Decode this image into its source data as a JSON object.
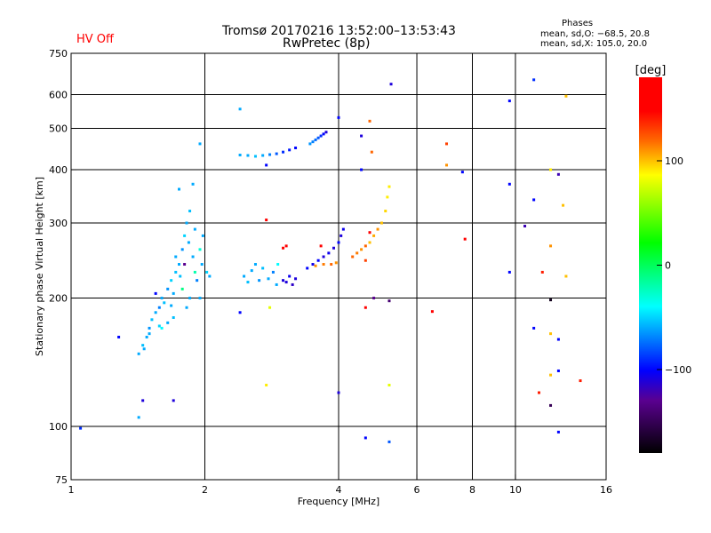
{
  "header": {
    "hv_status": "HV Off",
    "hv_color": "#ff0000",
    "title_line1": "Tromsø 20170216 13:52:00–13:53:43",
    "title_line2": "RwPretec (8p)",
    "phase_title": "Phases",
    "phase_o": "mean, sd,O: −68.5, 20.8",
    "phase_x": "mean, sd,X: 105.0, 20.0"
  },
  "chart_data": {
    "type": "scatter",
    "xlabel": "Frequency [MHz]",
    "ylabel": "Stationary phase Virtual Height [km]",
    "xscale": "log",
    "yscale": "log",
    "xlim": [
      1,
      16
    ],
    "ylim": [
      75,
      750
    ],
    "xticks": [
      1,
      2,
      4,
      6,
      8,
      10,
      16
    ],
    "xtick_labels": [
      "1",
      "2",
      "4",
      "6",
      "8",
      "10",
      "16"
    ],
    "xgrid": [
      2,
      4,
      6,
      8,
      10
    ],
    "yticks": [
      75,
      100,
      200,
      300,
      400,
      500,
      600,
      750
    ],
    "ytick_labels": [
      "75",
      "100",
      "200",
      "300",
      "400",
      "500",
      "600",
      "750"
    ],
    "ygrid": [
      100,
      200,
      300,
      400,
      500,
      600
    ],
    "colorbar": {
      "label": "[deg]",
      "range": [
        -180,
        180
      ],
      "ticks": [
        100,
        0,
        -100
      ],
      "tick_labels": [
        "100",
        "0",
        "−100"
      ]
    },
    "point_fields": [
      "frequency_mhz",
      "height_km",
      "phase_deg"
    ],
    "points": [
      [
        1.42,
        148,
        -60
      ],
      [
        1.45,
        155,
        -55
      ],
      [
        1.48,
        162,
        -60
      ],
      [
        1.5,
        170,
        -65
      ],
      [
        1.52,
        178,
        -55
      ],
      [
        1.55,
        185,
        -60
      ],
      [
        1.58,
        190,
        -70
      ],
      [
        1.6,
        200,
        -60
      ],
      [
        1.62,
        195,
        -55
      ],
      [
        1.65,
        210,
        -65
      ],
      [
        1.68,
        220,
        -50
      ],
      [
        1.7,
        205,
        -60
      ],
      [
        1.72,
        230,
        -55
      ],
      [
        1.75,
        240,
        -60
      ],
      [
        1.78,
        260,
        -65
      ],
      [
        1.8,
        280,
        -50
      ],
      [
        1.82,
        300,
        -60
      ],
      [
        1.85,
        320,
        -55
      ],
      [
        1.88,
        250,
        -60
      ],
      [
        1.9,
        230,
        -20
      ],
      [
        1.92,
        220,
        -70
      ],
      [
        1.95,
        260,
        -30
      ],
      [
        1.98,
        280,
        -60
      ],
      [
        2.02,
        230,
        -50
      ],
      [
        2.05,
        225,
        -60
      ],
      [
        1.75,
        360,
        -60
      ],
      [
        1.88,
        370,
        -60
      ],
      [
        1.6,
        170,
        -40
      ],
      [
        1.55,
        205,
        -100
      ],
      [
        1.5,
        165,
        -60
      ],
      [
        1.7,
        180,
        -55
      ],
      [
        1.65,
        175,
        -60
      ],
      [
        1.78,
        210,
        -10
      ],
      [
        1.85,
        200,
        -60
      ],
      [
        1.82,
        190,
        -60
      ],
      [
        1.95,
        200,
        -60
      ],
      [
        1.72,
        250,
        -60
      ],
      [
        1.46,
        152,
        -60
      ],
      [
        1.58,
        172,
        -50
      ],
      [
        1.68,
        192,
        -60
      ],
      [
        1.76,
        225,
        -55
      ],
      [
        1.84,
        270,
        -60
      ],
      [
        1.9,
        290,
        -60
      ],
      [
        1.8,
        240,
        -130
      ],
      [
        1.97,
        240,
        -60
      ],
      [
        2.45,
        225,
        -60
      ],
      [
        2.5,
        218,
        -55
      ],
      [
        2.55,
        232,
        -60
      ],
      [
        2.6,
        240,
        -60
      ],
      [
        2.65,
        220,
        -65
      ],
      [
        2.7,
        235,
        -55
      ],
      [
        2.78,
        222,
        -60
      ],
      [
        2.85,
        230,
        -70
      ],
      [
        2.92,
        240,
        -40
      ],
      [
        3.0,
        220,
        -110
      ],
      [
        3.05,
        218,
        -110
      ],
      [
        3.1,
        225,
        -105
      ],
      [
        3.15,
        215,
        -115
      ],
      [
        3.2,
        222,
        -110
      ],
      [
        3.0,
        262,
        150
      ],
      [
        3.05,
        265,
        160
      ],
      [
        2.9,
        215,
        -60
      ],
      [
        2.4,
        433,
        -60
      ],
      [
        2.5,
        432,
        -60
      ],
      [
        2.6,
        430,
        -55
      ],
      [
        2.7,
        432,
        -60
      ],
      [
        2.8,
        434,
        -70
      ],
      [
        2.9,
        436,
        -80
      ],
      [
        3.0,
        440,
        -90
      ],
      [
        3.1,
        445,
        -95
      ],
      [
        3.2,
        450,
        -100
      ],
      [
        2.75,
        410,
        -100
      ],
      [
        3.45,
        460,
        -65
      ],
      [
        3.5,
        465,
        -70
      ],
      [
        3.55,
        470,
        -75
      ],
      [
        3.6,
        475,
        -80
      ],
      [
        3.65,
        480,
        -90
      ],
      [
        3.7,
        485,
        -100
      ],
      [
        3.75,
        490,
        -110
      ],
      [
        3.4,
        235,
        -100
      ],
      [
        3.5,
        240,
        -105
      ],
      [
        3.6,
        245,
        -100
      ],
      [
        3.7,
        250,
        -110
      ],
      [
        3.8,
        255,
        -105
      ],
      [
        3.9,
        262,
        -110
      ],
      [
        4.0,
        270,
        -100
      ],
      [
        4.05,
        280,
        -110
      ],
      [
        4.1,
        290,
        -105
      ],
      [
        3.55,
        238,
        110
      ],
      [
        3.7,
        240,
        115
      ],
      [
        3.85,
        240,
        120
      ],
      [
        3.95,
        242,
        110
      ],
      [
        3.65,
        265,
        150
      ],
      [
        4.3,
        250,
        120
      ],
      [
        4.4,
        255,
        115
      ],
      [
        4.5,
        260,
        110
      ],
      [
        4.6,
        265,
        120
      ],
      [
        4.7,
        270,
        100
      ],
      [
        4.8,
        280,
        105
      ],
      [
        4.9,
        290,
        110
      ],
      [
        5.0,
        300,
        100
      ],
      [
        5.1,
        320,
        95
      ],
      [
        5.15,
        345,
        90
      ],
      [
        5.2,
        365,
        90
      ],
      [
        4.6,
        245,
        130
      ],
      [
        4.7,
        285,
        150
      ],
      [
        1.05,
        99,
        -90
      ],
      [
        1.28,
        162,
        -100
      ],
      [
        1.42,
        105,
        -60
      ],
      [
        1.45,
        115,
        -110
      ],
      [
        1.7,
        115,
        -110
      ],
      [
        1.95,
        460,
        -60
      ],
      [
        2.4,
        555,
        -60
      ],
      [
        2.4,
        185,
        -100
      ],
      [
        2.75,
        305,
        150
      ],
      [
        2.8,
        190,
        80
      ],
      [
        2.75,
        125,
        90
      ],
      [
        4.0,
        120,
        -110
      ],
      [
        4.0,
        530,
        -100
      ],
      [
        4.5,
        480,
        -110
      ],
      [
        4.5,
        400,
        -100
      ],
      [
        4.6,
        190,
        150
      ],
      [
        4.7,
        520,
        120
      ],
      [
        4.75,
        440,
        120
      ],
      [
        4.8,
        200,
        -130
      ],
      [
        4.6,
        94,
        -100
      ],
      [
        5.2,
        92,
        -80
      ],
      [
        5.2,
        125,
        80
      ],
      [
        5.2,
        197,
        -140
      ],
      [
        5.25,
        635,
        -110
      ],
      [
        6.5,
        186,
        150
      ],
      [
        7.0,
        460,
        130
      ],
      [
        7.0,
        410,
        110
      ],
      [
        7.6,
        395,
        -100
      ],
      [
        7.7,
        275,
        160
      ],
      [
        9.7,
        580,
        -100
      ],
      [
        9.7,
        370,
        -100
      ],
      [
        9.7,
        230,
        -100
      ],
      [
        10.5,
        295,
        -120
      ],
      [
        11,
        650,
        -90
      ],
      [
        11,
        340,
        -100
      ],
      [
        11,
        170,
        -100
      ],
      [
        11.3,
        120,
        140
      ],
      [
        11.5,
        230,
        140
      ],
      [
        12,
        400,
        90
      ],
      [
        12,
        265,
        110
      ],
      [
        12,
        198,
        -170
      ],
      [
        12,
        165,
        100
      ],
      [
        12,
        132,
        100
      ],
      [
        12,
        112,
        -150
      ],
      [
        12.5,
        390,
        -120
      ],
      [
        12.5,
        160,
        -100
      ],
      [
        12.5,
        135,
        -100
      ],
      [
        12.5,
        97,
        -100
      ],
      [
        12.8,
        330,
        100
      ],
      [
        13,
        595,
        100
      ],
      [
        13,
        225,
        100
      ],
      [
        14,
        128,
        140
      ]
    ]
  }
}
